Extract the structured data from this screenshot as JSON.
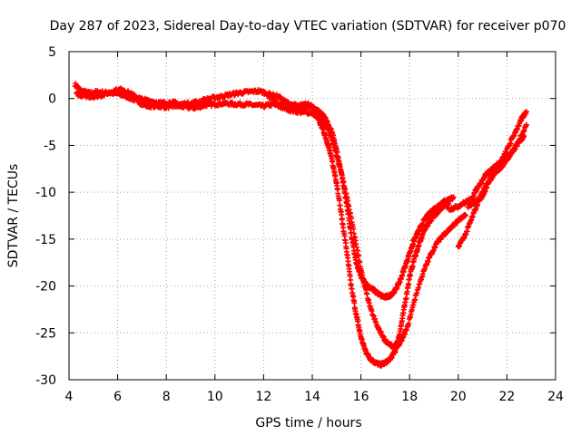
{
  "chart_data": {
    "type": "scatter",
    "title": "Day 287 of 2023, Sidereal Day-to-day VTEC variation (SDTVAR) for receiver p070",
    "xlabel": "GPS time / hours",
    "ylabel": "SDTVAR / TECUs",
    "xlim": [
      4,
      24
    ],
    "ylim": [
      -30,
      5
    ],
    "xticks": [
      "4",
      "6",
      "8",
      "10",
      "12",
      "14",
      "16",
      "18",
      "20",
      "22",
      "24"
    ],
    "yticks": [
      "5",
      "0",
      "-5",
      "-10",
      "-15",
      "-20",
      "-25",
      "-30"
    ],
    "grid": true,
    "marker": "+",
    "color": "#ff0000",
    "series": [
      {
        "name": "track-a",
        "x": [
          4.25,
          4.5,
          4.8,
          5.2,
          5.6,
          6.0,
          6.4,
          6.8,
          7.2,
          7.6,
          8.0,
          8.4,
          8.8,
          9.2,
          9.6,
          10.0,
          10.4,
          10.8,
          11.2,
          11.6,
          12.0,
          12.4,
          12.8,
          13.2,
          13.6,
          14.0,
          14.2,
          14.4,
          14.6,
          14.8,
          15.0,
          15.2,
          15.4,
          15.6,
          15.8,
          16.0,
          16.2,
          16.4,
          16.6,
          16.8,
          17.0,
          17.2,
          17.4,
          17.6,
          17.8,
          18.0,
          18.2,
          18.4,
          18.6,
          18.8,
          19.0,
          19.2,
          19.4,
          19.6
        ],
        "y": [
          1.5,
          0.8,
          0.6,
          0.7,
          0.6,
          0.5,
          0.2,
          -0.3,
          -0.8,
          -0.8,
          -0.9,
          -0.8,
          -0.9,
          -1.0,
          -0.7,
          -0.6,
          -0.5,
          -0.6,
          -0.6,
          -0.7,
          -0.8,
          -0.6,
          -1.0,
          -1.3,
          -1.5,
          -1.5,
          -2.0,
          -3.0,
          -4.5,
          -6.5,
          -9.0,
          -12.5,
          -16.0,
          -20.0,
          -23.0,
          -25.5,
          -27.0,
          -27.8,
          -28.2,
          -28.4,
          -28.2,
          -27.8,
          -27.0,
          -25.0,
          -22.0,
          -19.0,
          -17.0,
          -15.5,
          -14.0,
          -13.2,
          -12.5,
          -12.0,
          -11.5,
          -11.2
        ]
      },
      {
        "name": "track-b",
        "x": [
          4.3,
          4.6,
          5.0,
          5.4,
          5.8,
          6.2,
          6.6,
          7.0,
          7.4,
          7.8,
          8.2,
          8.6,
          9.0,
          9.4,
          9.8,
          10.2,
          10.6,
          11.0,
          11.4,
          11.8,
          12.2,
          12.6,
          13.0,
          13.4,
          13.8,
          14.2,
          14.5,
          14.8,
          15.0,
          15.2,
          15.4,
          15.6,
          15.8,
          16.0,
          16.2,
          16.4,
          16.6,
          16.8,
          17.0,
          17.2,
          17.4,
          17.6,
          17.8,
          18.0,
          18.2,
          18.4,
          18.6,
          18.8,
          19.0,
          19.2,
          19.4,
          19.6,
          19.8
        ],
        "y": [
          0.5,
          0.3,
          0.2,
          0.4,
          0.8,
          1.0,
          0.4,
          -0.1,
          -0.3,
          -0.5,
          -0.4,
          -0.6,
          -0.5,
          -0.3,
          0.0,
          0.2,
          0.4,
          0.6,
          0.7,
          0.8,
          0.5,
          0.2,
          -0.5,
          -0.8,
          -0.6,
          -1.2,
          -2.0,
          -3.5,
          -5.5,
          -8.0,
          -11.0,
          -14.5,
          -17.5,
          -19.0,
          -19.8,
          -20.2,
          -20.6,
          -21.0,
          -21.2,
          -21.0,
          -20.5,
          -19.5,
          -18.0,
          -16.5,
          -15.0,
          -14.0,
          -13.0,
          -12.3,
          -11.8,
          -11.4,
          -11.0,
          -10.8,
          -10.5
        ]
      },
      {
        "name": "track-c",
        "x": [
          12.2,
          12.5,
          12.8,
          13.1,
          13.4,
          13.7,
          14.0,
          14.3,
          14.6,
          14.9,
          15.2,
          15.5,
          15.8,
          16.1,
          16.4,
          16.7,
          17.0,
          17.3,
          17.6,
          17.9,
          18.2,
          18.5,
          18.8,
          19.1,
          19.4,
          19.7,
          20.0,
          20.3
        ],
        "y": [
          0.2,
          -0.4,
          -0.8,
          -1.0,
          -1.2,
          -1.0,
          -0.8,
          -1.5,
          -3.0,
          -5.2,
          -8.0,
          -11.5,
          -15.5,
          -19.5,
          -22.5,
          -24.5,
          -25.8,
          -26.5,
          -26.2,
          -24.5,
          -21.5,
          -19.0,
          -17.0,
          -15.5,
          -14.5,
          -13.8,
          -13.0,
          -12.5
        ]
      },
      {
        "name": "track-d",
        "x": [
          20.0,
          20.3,
          20.6,
          20.9,
          21.2,
          21.5,
          21.8,
          22.1,
          22.4,
          22.7
        ],
        "y": [
          -15.8,
          -14.5,
          -12.5,
          -10.5,
          -9.0,
          -8.0,
          -7.2,
          -6.2,
          -5.0,
          -4.0
        ]
      },
      {
        "name": "track-e",
        "x": [
          19.6,
          19.9,
          20.2,
          20.5,
          20.8,
          21.1,
          21.4,
          21.7,
          22.0,
          22.3,
          22.6,
          22.8
        ],
        "y": [
          -11.8,
          -11.6,
          -11.2,
          -10.8,
          -9.5,
          -8.2,
          -7.5,
          -7.0,
          -5.5,
          -3.8,
          -2.2,
          -1.4
        ]
      },
      {
        "name": "track-f",
        "x": [
          20.4,
          20.7,
          21.0,
          21.3,
          21.6,
          21.9,
          22.2,
          22.5,
          22.8
        ],
        "y": [
          -11.5,
          -11.0,
          -10.5,
          -8.5,
          -7.0,
          -6.5,
          -5.8,
          -4.5,
          -2.8
        ]
      }
    ]
  }
}
